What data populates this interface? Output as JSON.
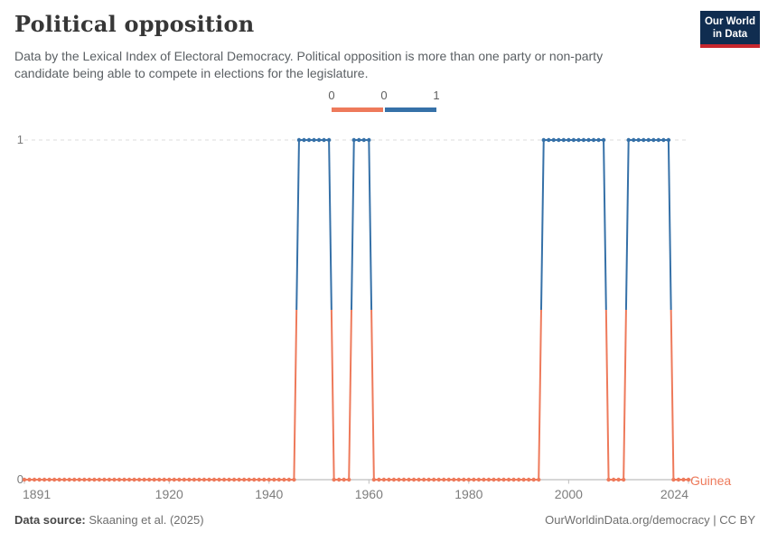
{
  "header": {
    "title": "Political opposition",
    "subtitle": "Data by the Lexical Index of Electoral Democracy. Political opposition is more than one party or non-party candidate being able to compete in elections for the legislature."
  },
  "logo": {
    "line1": "Our World",
    "line2": "in Data"
  },
  "legend": {
    "labels": [
      "0",
      "0",
      "1"
    ],
    "color_zero": "#ee7a5b",
    "color_one": "#3671a8"
  },
  "chart_data": {
    "type": "line",
    "title": "Political opposition",
    "entity": "Guinea",
    "xlim": [
      1891,
      2024
    ],
    "ylim": [
      0,
      1
    ],
    "x_ticks": [
      1891,
      1920,
      1940,
      1960,
      1980,
      2000,
      2024
    ],
    "y_ticks": [
      0,
      1
    ],
    "grid": "dashed line at y=1 only",
    "legend_position": "top-center",
    "series": [
      {
        "name": "Guinea",
        "step_segments": [
          {
            "start": 1891,
            "end": 1945,
            "value": 0
          },
          {
            "start": 1946,
            "end": 1952,
            "value": 1
          },
          {
            "start": 1953,
            "end": 1956,
            "value": 0
          },
          {
            "start": 1957,
            "end": 1960,
            "value": 1
          },
          {
            "start": 1961,
            "end": 1994,
            "value": 0
          },
          {
            "start": 1995,
            "end": 2007,
            "value": 1
          },
          {
            "start": 2008,
            "end": 2011,
            "value": 0
          },
          {
            "start": 2012,
            "end": 2020,
            "value": 1
          },
          {
            "start": 2021,
            "end": 2024,
            "value": 0
          }
        ]
      }
    ],
    "colors": {
      "value0": "#ee7a5b",
      "value1": "#3671a8"
    }
  },
  "footer": {
    "source_label": "Data source:",
    "source_value": " Skaaning et al. (2025)",
    "credit": "OurWorldinData.org/democracy | CC BY"
  }
}
